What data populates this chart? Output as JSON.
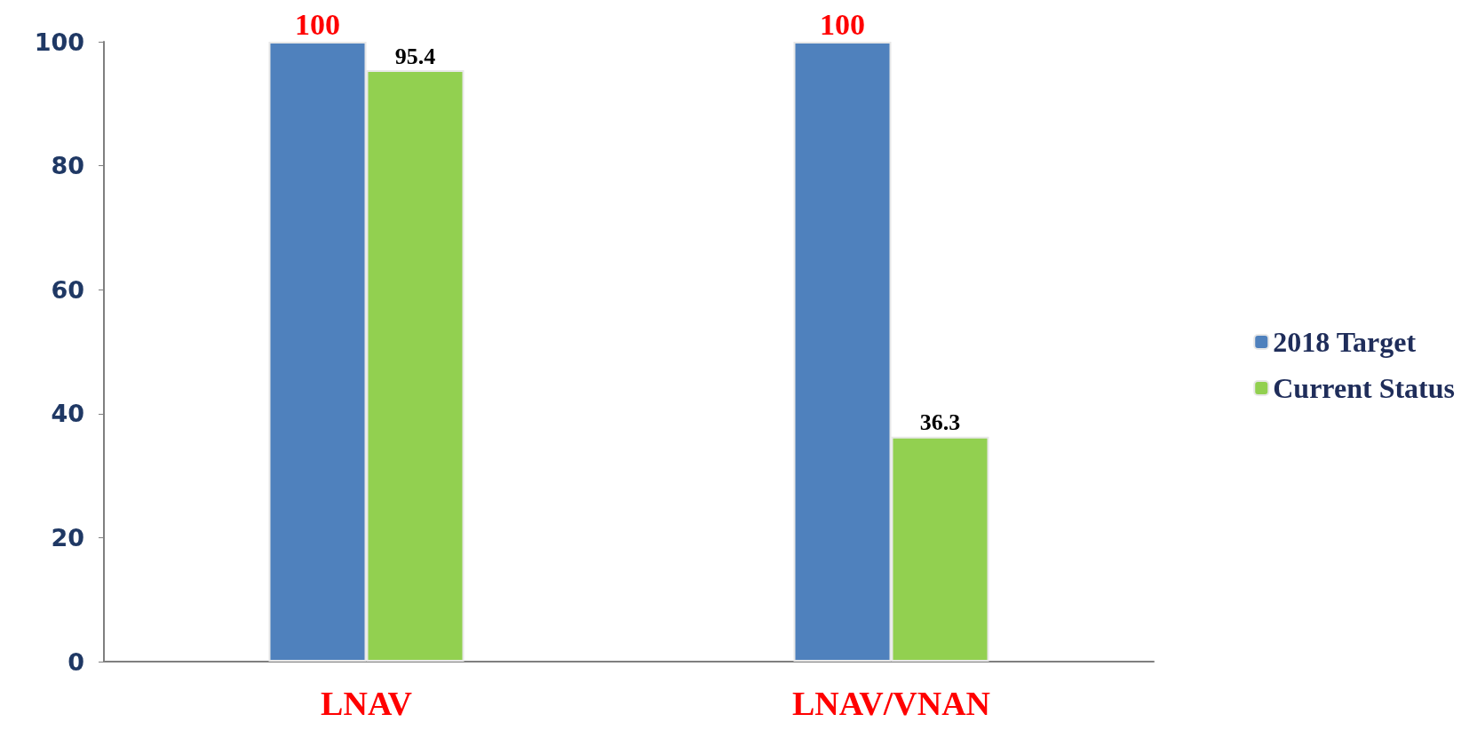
{
  "chart_data": {
    "type": "bar",
    "categories": [
      "LNAV",
      "LNAV/VNAN"
    ],
    "series": [
      {
        "name": "2018 Target",
        "color": "#4f81bd",
        "values": [
          100,
          100
        ]
      },
      {
        "name": "Current Status",
        "color": "#92d050",
        "values": [
          95.4,
          36.3
        ]
      }
    ],
    "ylim": [
      0,
      100
    ],
    "yticks": [
      0,
      20,
      40,
      60,
      80,
      100
    ],
    "grid": false,
    "legend": "right",
    "data_labels": true
  }
}
